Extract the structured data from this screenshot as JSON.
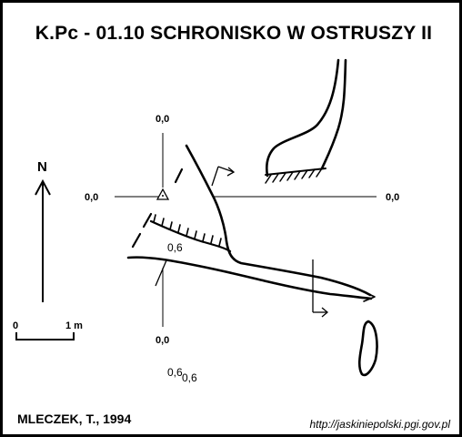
{
  "header": {
    "title": "K.Pc - 01.10  SCHRONISKO W OSTRUSZY II"
  },
  "compass": {
    "north_label": "N"
  },
  "scale_bar": {
    "start_label": "0",
    "end_label": "1 m"
  },
  "grid_labels": {
    "top": "0,0",
    "left": "0,0",
    "right": "0,0",
    "bottom": "0,0"
  },
  "depth_labels": {
    "inside_passage": "0,6",
    "below_a": "0,6",
    "below_b": "0,6"
  },
  "footer": {
    "author": "MLECZEK, T., 1994",
    "url": "http://jaskiniepolski.pgi.gov.pl"
  }
}
